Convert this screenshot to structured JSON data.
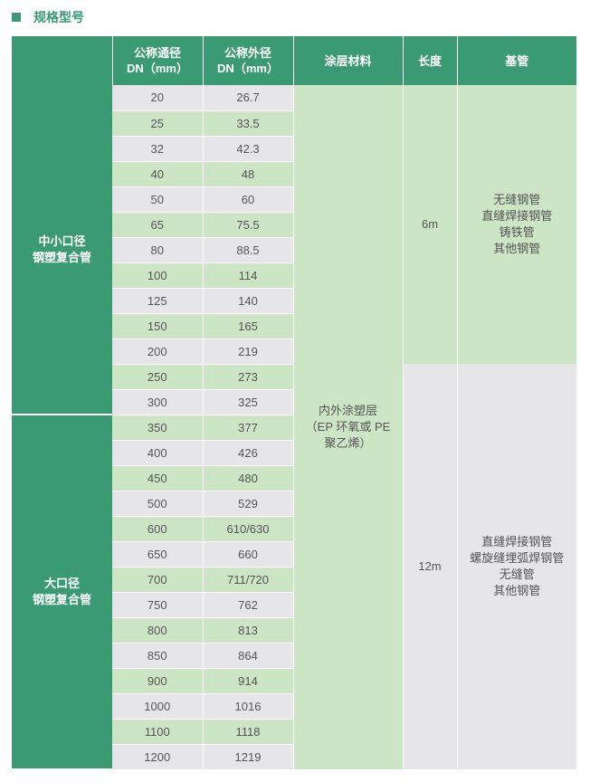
{
  "colors": {
    "accent": "#3a9a74",
    "green_light": "#cce5c4",
    "grey_light": "#e6e6e8"
  },
  "section_title": "规格型号",
  "headers": {
    "dn_line1": "公称通径",
    "dn_line2": "DN（mm）",
    "od_line1": "公称外径",
    "od_line2": "DN（mm）",
    "coating": "涂层材料",
    "length": "长度",
    "base_pipe": "基管"
  },
  "categories": {
    "small": {
      "line1": "中小口径",
      "line2": "钢塑复合管"
    },
    "large": {
      "line1": "大口径",
      "line2": "钢塑复合管"
    }
  },
  "rows": [
    {
      "dn": "20",
      "od": "26.7"
    },
    {
      "dn": "25",
      "od": "33.5"
    },
    {
      "dn": "32",
      "od": "42.3"
    },
    {
      "dn": "40",
      "od": "48"
    },
    {
      "dn": "50",
      "od": "60"
    },
    {
      "dn": "65",
      "od": "75.5"
    },
    {
      "dn": "80",
      "od": "88.5"
    },
    {
      "dn": "100",
      "od": "114"
    },
    {
      "dn": "125",
      "od": "140"
    },
    {
      "dn": "150",
      "od": "165"
    },
    {
      "dn": "200",
      "od": "219"
    },
    {
      "dn": "250",
      "od": "273"
    },
    {
      "dn": "300",
      "od": "325"
    },
    {
      "dn": "350",
      "od": "377"
    },
    {
      "dn": "400",
      "od": "426"
    },
    {
      "dn": "450",
      "od": "480"
    },
    {
      "dn": "500",
      "od": "529"
    },
    {
      "dn": "600",
      "od": "610/630"
    },
    {
      "dn": "650",
      "od": "660"
    },
    {
      "dn": "700",
      "od": "711/720"
    },
    {
      "dn": "750",
      "od": "762"
    },
    {
      "dn": "800",
      "od": "813"
    },
    {
      "dn": "850",
      "od": "864"
    },
    {
      "dn": "900",
      "od": "914"
    },
    {
      "dn": "1000",
      "od": "1016"
    },
    {
      "dn": "1100",
      "od": "1118"
    },
    {
      "dn": "1200",
      "od": "1219"
    }
  ],
  "coating_text": "内外涂塑层\n（EP 环氧或 PE\n聚乙烯）",
  "length_short": "6m",
  "length_long": "12m",
  "base_small": "无缝钢管\n直缝焊接钢管\n铸铁管\n其他钢管",
  "base_large": "直缝焊接钢管\n螺旋缝埋弧焊钢管\n无缝管\n其他钢管"
}
